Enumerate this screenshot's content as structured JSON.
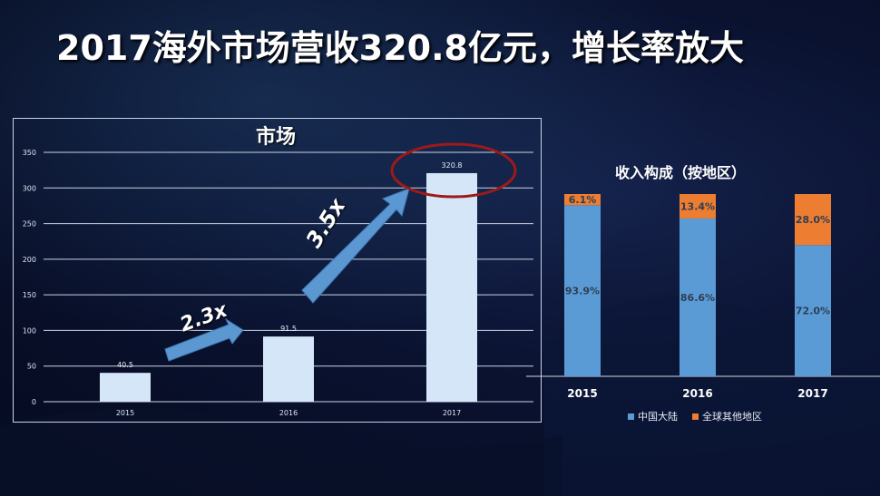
{
  "slide": {
    "title": "2017海外市场营收320.8亿元，增长率放大"
  },
  "colors": {
    "bar_light": "#d4e6f7",
    "mainland": "#5b9bd5",
    "other": "#ed7d31",
    "circle": "#9c1a1a",
    "arrow": "#5b97d1"
  },
  "annotations": {
    "growth_1": "2.3x",
    "growth_2": "3.5x"
  },
  "chart_data": [
    {
      "type": "bar",
      "title": "市场",
      "categories": [
        "2015",
        "2016",
        "2017"
      ],
      "values": [
        40.5,
        91.5,
        320.8
      ],
      "value_labels": [
        "40.5",
        "91.5",
        "320.8"
      ],
      "ylim": [
        0,
        350
      ],
      "yticks": [
        "0",
        "50",
        "100",
        "150",
        "200",
        "250",
        "300",
        "350"
      ],
      "grid": true
    },
    {
      "type": "bar",
      "stacked": true,
      "title": "收入构成（按地区）",
      "categories": [
        "2015",
        "2016",
        "2017"
      ],
      "series": [
        {
          "name": "中国大陆",
          "values": [
            93.9,
            86.6,
            72.0
          ],
          "labels": [
            "93.9%",
            "86.6%",
            "72.0%"
          ]
        },
        {
          "name": "全球其他地区",
          "values": [
            6.1,
            13.4,
            28.0
          ],
          "labels": [
            "6.1%",
            "13.4%",
            "28.0%"
          ]
        }
      ],
      "ylim": [
        0,
        100
      ],
      "legend": "bottom"
    }
  ]
}
